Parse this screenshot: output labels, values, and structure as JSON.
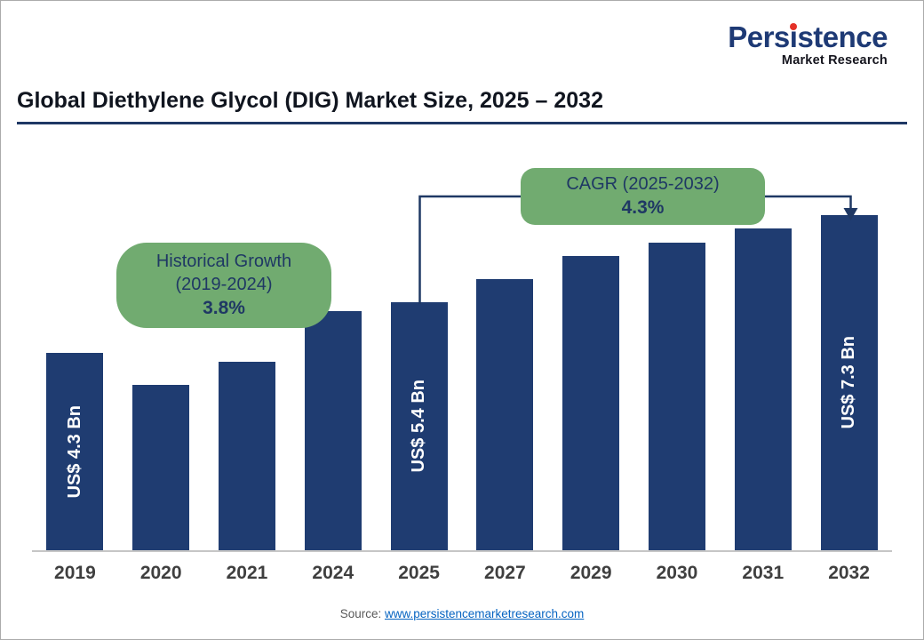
{
  "brand": {
    "name": "Persistence",
    "name_pre": "Pers",
    "name_i": "i",
    "name_post": "stence",
    "subtitle": "Market Research",
    "color": "#1e3a75",
    "dot_color": "#e43128"
  },
  "title": "Global Diethylene Glycol (DIG) Market Size, 2025 – 2032",
  "callouts": {
    "historical": {
      "line1": "Historical Growth",
      "line2": "(2019-2024)",
      "value": "3.8%"
    },
    "cagr": {
      "line1": "CAGR (2025-2032)",
      "value": "4.3%"
    }
  },
  "source": {
    "prefix": "Source: ",
    "link_text": "www.persistencemarketresearch.com"
  },
  "chart_data": {
    "type": "bar",
    "title": "Global Diethylene Glycol (DIG) Market Size, 2025 – 2032",
    "categories": [
      "2019",
      "2020",
      "2021",
      "2024",
      "2025",
      "2027",
      "2029",
      "2030",
      "2031",
      "2032"
    ],
    "values": [
      4.3,
      3.6,
      4.1,
      5.2,
      5.4,
      5.9,
      6.4,
      6.7,
      7.0,
      7.3
    ],
    "values_unit": "US$ Bn",
    "labeled_points": {
      "2019": "US$ 4.3 Bn",
      "2025": "US$ 5.4 Bn",
      "2032": "US$ 7.3 Bn"
    },
    "bar_labels": [
      "US$ 4.3 Bn",
      "",
      "",
      "",
      "US$ 5.4 Bn",
      "",
      "",
      "",
      "",
      "US$ 7.3 Bn"
    ],
    "annotations": [
      {
        "text": "Historical Growth (2019-2024) 3.8%",
        "applies_to": "2019-2024"
      },
      {
        "text": "CAGR (2025-2032) 4.3%",
        "applies_to": "2025-2032"
      }
    ],
    "xlabel": "",
    "ylabel": "",
    "ylim": [
      0,
      7.3
    ],
    "grid": false,
    "legend": "none",
    "bar_color": "#1f3c71"
  },
  "colors": {
    "bar": "#1f3c71",
    "callout_green": "#71ab70",
    "navy": "#1f3864",
    "link_blue": "#0563c1",
    "axis_gray": "#c6c6c6"
  }
}
